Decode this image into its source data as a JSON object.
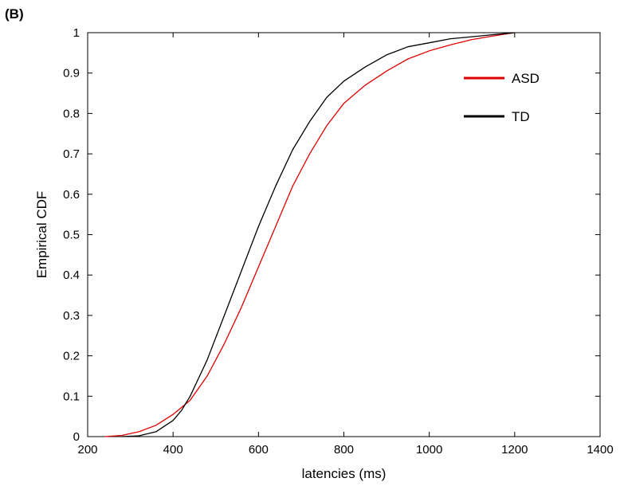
{
  "panel_label": "(B)",
  "chart_data": {
    "type": "line",
    "title": "",
    "xlabel": "latencies (ms)",
    "ylabel": "Empirical CDF",
    "xlim": [
      200,
      1400
    ],
    "ylim": [
      0,
      1
    ],
    "xticks": [
      200,
      400,
      600,
      800,
      1000,
      1200,
      1400
    ],
    "yticks": [
      0,
      0.1,
      0.2,
      0.3,
      0.4,
      0.5,
      0.6,
      0.7,
      0.8,
      0.9,
      1
    ],
    "ytick_labels": [
      "0",
      "0.1",
      "0.2",
      "0.3",
      "0.4",
      "0.5",
      "0.6",
      "0.7",
      "0.8",
      "0.9",
      "1"
    ],
    "grid": false,
    "legend_position": "top-right",
    "series": [
      {
        "name": "ASD",
        "color": "#e00000",
        "x": [
          240,
          280,
          320,
          360,
          400,
          440,
          480,
          520,
          560,
          600,
          640,
          680,
          720,
          760,
          800,
          850,
          900,
          950,
          1000,
          1050,
          1100,
          1150,
          1200
        ],
        "y": [
          0,
          0.003,
          0.012,
          0.028,
          0.055,
          0.09,
          0.15,
          0.23,
          0.32,
          0.42,
          0.52,
          0.62,
          0.7,
          0.77,
          0.825,
          0.87,
          0.905,
          0.935,
          0.955,
          0.97,
          0.983,
          0.992,
          1
        ]
      },
      {
        "name": "TD",
        "color": "#000000",
        "x": [
          280,
          320,
          360,
          400,
          420,
          440,
          480,
          520,
          560,
          600,
          640,
          680,
          720,
          760,
          800,
          850,
          900,
          950,
          1000,
          1050,
          1100,
          1150,
          1200
        ],
        "y": [
          0,
          0.002,
          0.012,
          0.04,
          0.065,
          0.1,
          0.19,
          0.3,
          0.41,
          0.52,
          0.62,
          0.71,
          0.78,
          0.84,
          0.88,
          0.915,
          0.945,
          0.965,
          0.975,
          0.985,
          0.99,
          0.995,
          1
        ]
      }
    ]
  }
}
